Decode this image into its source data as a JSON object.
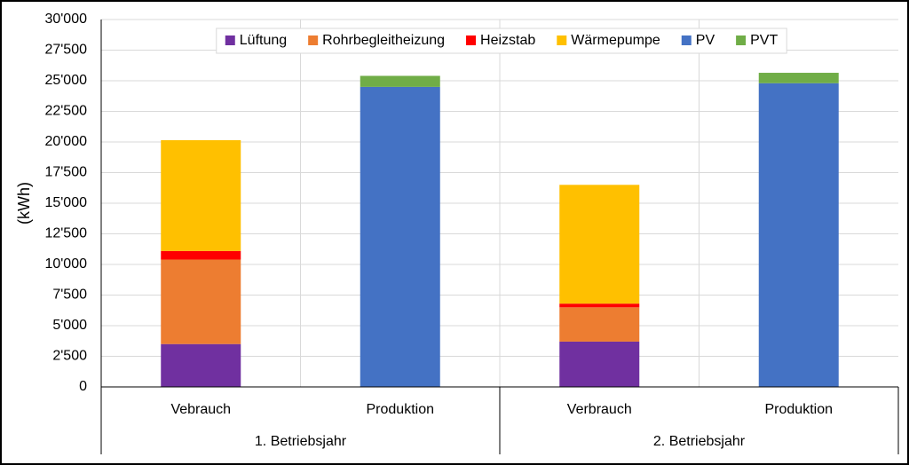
{
  "chart_data": {
    "type": "stacked_bar",
    "y_label": "(kWh)",
    "categories": [
      "Vebrauch",
      "Produktion",
      "Verbrauch",
      "Produktion"
    ],
    "groups": [
      "1. Betriebsjahr",
      "2. Betriebsjahr"
    ],
    "series": [
      {
        "name": "Lüftung",
        "color": "#7030a0",
        "values": [
          3500,
          null,
          3700,
          null
        ]
      },
      {
        "name": "Rohrbegleitheizung",
        "color": "#ed7d31",
        "values": [
          6900,
          null,
          2800,
          null
        ]
      },
      {
        "name": "Heizstab",
        "color": "#ff0000",
        "values": [
          700,
          null,
          300,
          null
        ]
      },
      {
        "name": "Wärmepumpe",
        "color": "#ffc000",
        "values": [
          9050,
          null,
          9700,
          null
        ]
      },
      {
        "name": "PV",
        "color": "#4472c4",
        "values": [
          null,
          24500,
          null,
          24800
        ]
      },
      {
        "name": "PVT",
        "color": "#70ad47",
        "values": [
          null,
          900,
          null,
          850
        ]
      }
    ],
    "ylim": [
      0,
      30000
    ],
    "yticks": [
      0,
      {
        "value": 2500,
        "label": "2'500"
      },
      {
        "value": 5000,
        "label": "5'000"
      },
      {
        "value": 7500,
        "label": "7'500"
      },
      {
        "value": 10000,
        "label": "10'000"
      },
      {
        "value": 12500,
        "label": "12'500"
      },
      {
        "value": 15000,
        "label": "15'000"
      },
      {
        "value": 17500,
        "label": "17'500"
      },
      {
        "value": 20000,
        "label": "20'000"
      },
      {
        "value": 22500,
        "label": "22'500"
      },
      {
        "value": 25000,
        "label": "25'000"
      },
      {
        "value": 27500,
        "label": "27'500"
      },
      {
        "value": 30000,
        "label": "30'000"
      }
    ],
    "grid": true,
    "legend": "top"
  }
}
